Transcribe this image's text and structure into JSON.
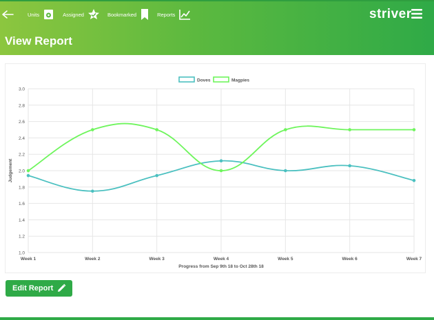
{
  "nav": {
    "items": [
      {
        "label": "Units",
        "icon": "units-icon"
      },
      {
        "label": "Assigned",
        "icon": "assigned-star-icon"
      },
      {
        "label": "Bookmarked",
        "icon": "bookmark-icon"
      },
      {
        "label": "Reports",
        "icon": "line-chart-icon"
      }
    ],
    "brand": "striver"
  },
  "page": {
    "title": "View Report"
  },
  "actions": {
    "edit_label": "Edit Report",
    "edit_icon": "pencil-icon"
  },
  "colors": {
    "primary": "#2faa47",
    "doves": "#4bc0c0",
    "magpies": "#6ef55c"
  },
  "chart_data": {
    "type": "line",
    "categories": [
      "Week 1",
      "Week 2",
      "Week 3",
      "Week 4",
      "Week 5",
      "Week 6",
      "Week 7"
    ],
    "series": [
      {
        "name": "Doves",
        "values": [
          1.94,
          1.75,
          1.94,
          2.12,
          2.0,
          2.06,
          1.88
        ],
        "color": "#4bc0c0"
      },
      {
        "name": "Magpies",
        "values": [
          2.0,
          2.5,
          2.5,
          2.0,
          2.5,
          2.5,
          2.5
        ],
        "color": "#6ef55c"
      }
    ],
    "ylabel": "Judgement",
    "xlabel": "Progress from Sep 9th 18 to Oct 28th 18",
    "ylim": [
      1.0,
      3.0
    ],
    "yticks": [
      "1.0",
      "1.2",
      "1.4",
      "1.6",
      "1.8",
      "2.0",
      "2.2",
      "2.4",
      "2.6",
      "2.8",
      "3.0"
    ],
    "legend": "top-center",
    "grid": true
  }
}
